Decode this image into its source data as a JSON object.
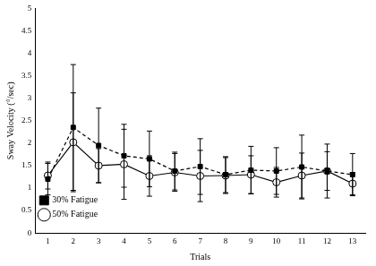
{
  "chart_data": {
    "type": "line",
    "x_label": "Trials",
    "y_label": "Sway Velocity (°/sec)",
    "categories": [
      1,
      2,
      3,
      4,
      5,
      6,
      7,
      8,
      9,
      10,
      11,
      12,
      13
    ],
    "series": [
      {
        "name": "30% Fatigue",
        "color": "#000000",
        "marker": "square",
        "line_style": "dashed",
        "values": [
          1.2,
          2.35,
          1.95,
          1.72,
          1.65,
          1.38,
          1.48,
          1.3,
          1.4,
          1.38,
          1.47,
          1.38,
          1.3
        ],
        "error": [
          0.35,
          1.4,
          0.83,
          0.7,
          0.62,
          0.42,
          0.62,
          0.4,
          0.53,
          0.52,
          0.71,
          0.6,
          0.47
        ]
      },
      {
        "name": "50% Fatigue",
        "color": "#000000",
        "marker": "circle-open",
        "line_style": "solid",
        "values": [
          1.28,
          2.02,
          1.5,
          1.53,
          1.27,
          1.35,
          1.27,
          1.28,
          1.3,
          1.13,
          1.28,
          1.38,
          1.1
        ],
        "error": [
          0.3,
          1.1,
          0.38,
          0.78,
          0.45,
          0.42,
          0.57,
          0.4,
          0.42,
          0.33,
          0.5,
          0.43,
          0.25
        ]
      }
    ],
    "ylim": [
      0,
      5
    ],
    "yticks": [
      0,
      0.5,
      1,
      1.5,
      2,
      2.5,
      3,
      3.5,
      4,
      4.5,
      5
    ],
    "grid": false,
    "legend": "top-right"
  }
}
